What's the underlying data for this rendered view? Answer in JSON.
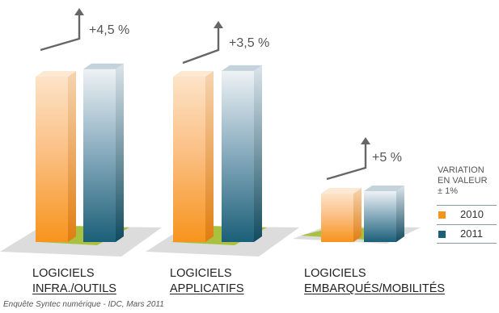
{
  "chart_data": {
    "type": "bar",
    "categories": [
      [
        "LOGICIELS",
        "INFRA./OUTILS"
      ],
      [
        "LOGICIELS",
        "APPLICATIFS"
      ],
      [
        "LOGICIELS",
        "EMBARQUÉS/MOBILITÉS"
      ]
    ],
    "series": [
      {
        "name": "2010",
        "color": "#f7941d",
        "relative_values": [
          1.0,
          1.0,
          1.0
        ]
      },
      {
        "name": "2011",
        "color": "#1b5f78",
        "relative_values": [
          1.045,
          1.035,
          1.05
        ]
      }
    ],
    "variations": [
      "+4,5 %",
      "+3,5 %",
      "+5 %"
    ],
    "legend_title": [
      "VARIATION",
      "EN VALEUR",
      "± 1%"
    ],
    "legend_position": "right",
    "grid": false,
    "colors": {
      "floor": "#dcdcdc",
      "floor_inner": "#a8c23f",
      "arrow": "#666666",
      "text": "#222222"
    }
  },
  "source": "Enquête Syntec numérique - IDC, Mars 2011"
}
